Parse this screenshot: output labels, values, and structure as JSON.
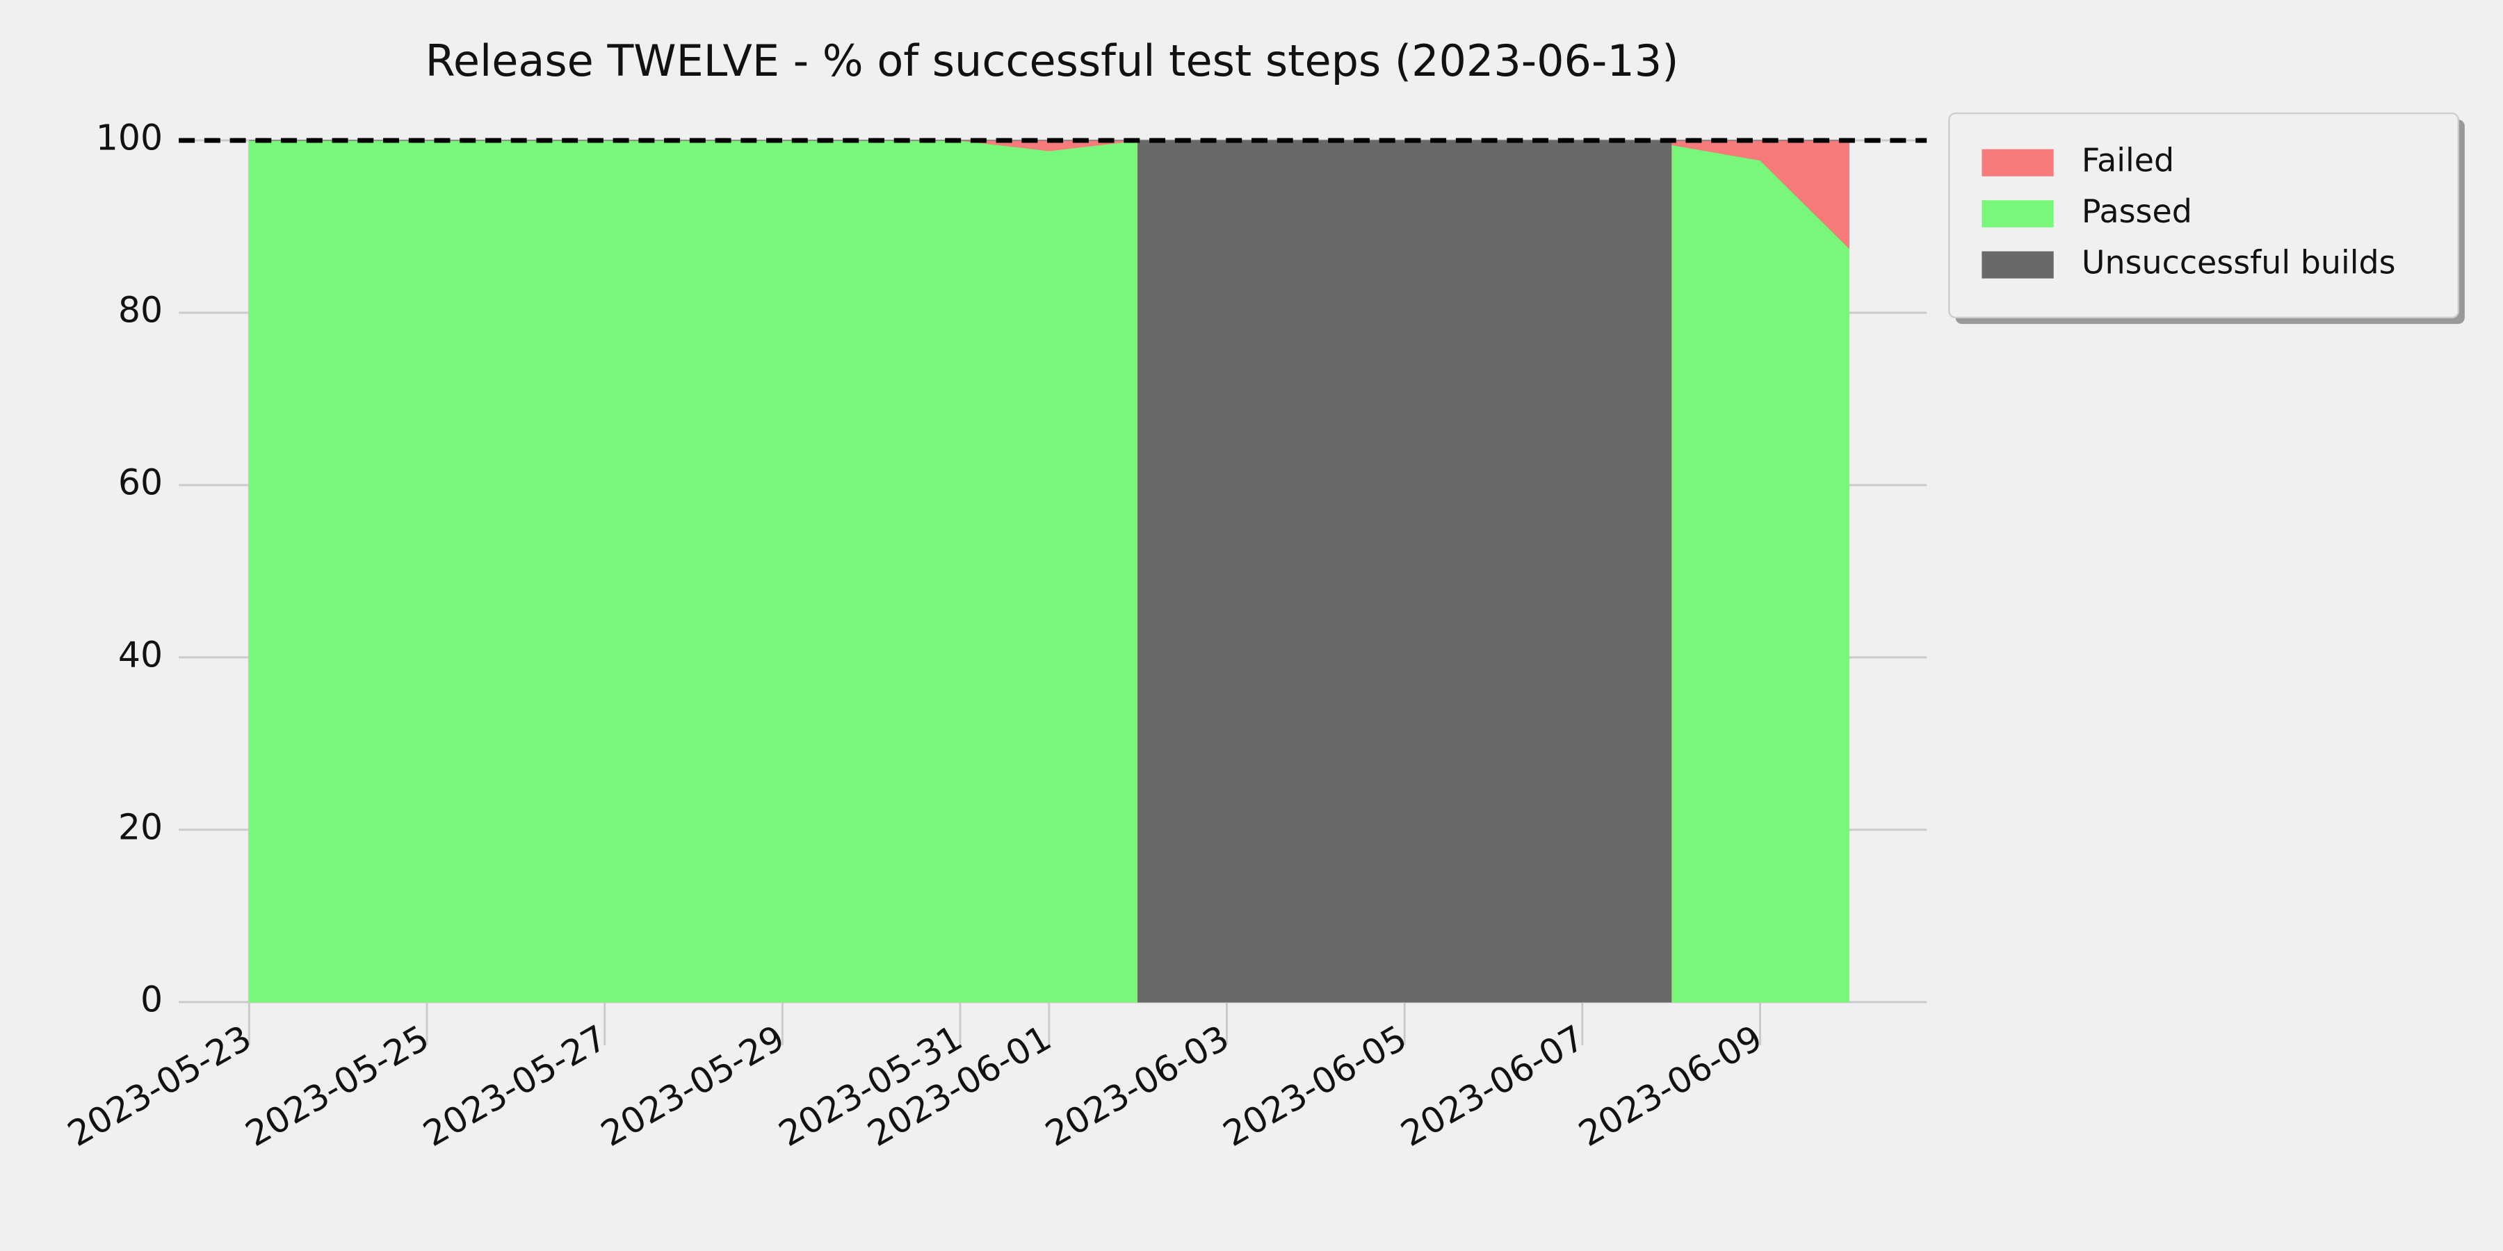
{
  "chart_data": {
    "type": "stacked-area",
    "title": "Release TWELVE - % of successful test steps (2023-06-13)",
    "x": [
      "2023-05-23",
      "2023-05-24",
      "2023-05-25",
      "2023-05-26",
      "2023-05-27",
      "2023-05-28",
      "2023-05-29",
      "2023-05-30",
      "2023-05-31",
      "2023-06-01",
      "2023-06-02",
      "2023-06-02",
      "2023-06-03",
      "2023-06-04",
      "2023-06-05",
      "2023-06-06",
      "2023-06-07",
      "2023-06-08",
      "2023-06-08",
      "2023-06-09",
      "2023-06-10"
    ],
    "series": [
      {
        "name": "Failed",
        "color": "#f77b7b",
        "values": [
          0,
          0,
          0,
          0,
          0,
          0,
          0,
          0,
          0,
          1.2,
          0,
          0,
          0,
          0,
          0,
          0,
          0,
          0,
          0.5,
          2.3,
          12.5
        ]
      },
      {
        "name": "Passed",
        "color": "#78f77a",
        "values": [
          100,
          100,
          100,
          100,
          100,
          100,
          100,
          100,
          100,
          98.8,
          100,
          0,
          0,
          0,
          0,
          0,
          0,
          0,
          99.5,
          97.7,
          87.5
        ]
      },
      {
        "name": "Unsuccessful builds",
        "color": "#696969",
        "values": [
          0,
          0,
          0,
          0,
          0,
          0,
          0,
          0,
          0,
          0,
          0,
          100,
          100,
          100,
          100,
          100,
          100,
          100,
          0,
          0,
          0
        ]
      }
    ],
    "reference_line": 100,
    "xlim": [
      "2023-05-22T05:00",
      "2023-06-10T21:00"
    ],
    "xticks": [
      "2023-05-23",
      "2023-05-25",
      "2023-05-27",
      "2023-05-29",
      "2023-05-31",
      "2023-06-01",
      "2023-06-03",
      "2023-06-05",
      "2023-06-07",
      "2023-06-09"
    ],
    "ylim": [
      -5,
      105
    ],
    "yticks": [
      0,
      20,
      40,
      60,
      80,
      100
    ],
    "grid": true,
    "legend": "outside-upper-right"
  }
}
